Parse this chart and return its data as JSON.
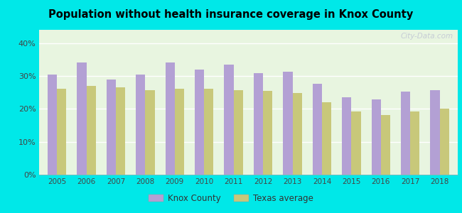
{
  "title": "Population without health insurance coverage in Knox County",
  "years": [
    2005,
    2006,
    2007,
    2008,
    2009,
    2010,
    2011,
    2012,
    2013,
    2014,
    2015,
    2016,
    2017,
    2018
  ],
  "knox_county": [
    0.305,
    0.34,
    0.288,
    0.305,
    0.34,
    0.32,
    0.335,
    0.308,
    0.313,
    0.275,
    0.235,
    0.228,
    0.252,
    0.256
  ],
  "texas_avg": [
    0.26,
    0.27,
    0.265,
    0.257,
    0.26,
    0.26,
    0.256,
    0.254,
    0.248,
    0.22,
    0.192,
    0.182,
    0.193,
    0.2
  ],
  "knox_color": "#b3a0d4",
  "texas_color": "#c8c87a",
  "background_chart": "#e8f5e0",
  "background_outer": "#00e8e8",
  "yticks": [
    0.0,
    0.1,
    0.2,
    0.3,
    0.4
  ],
  "ytick_labels": [
    "0%",
    "10%",
    "20%",
    "30%",
    "40%"
  ],
  "ylim": [
    0,
    0.44
  ],
  "bar_width": 0.32,
  "legend_labels": [
    "Knox County",
    "Texas average"
  ],
  "watermark": "City-Data.com"
}
